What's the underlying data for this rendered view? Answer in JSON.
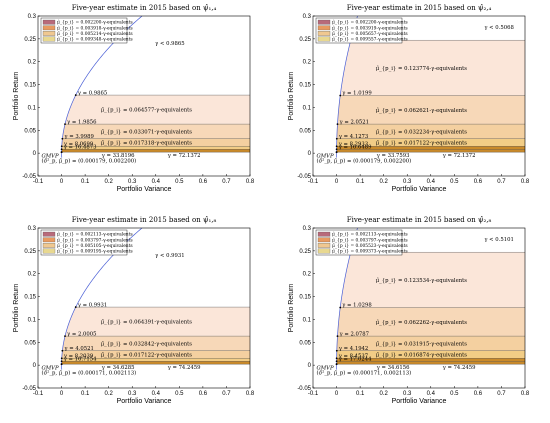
{
  "colors": {
    "frontier": "#4a5fd6",
    "axis": "#000000",
    "band1": "#fbe6d9",
    "band2": "#f7d8b8",
    "band3": "#f4d0a0",
    "band4": "#f2cd86",
    "band5": "#c98a2a",
    "legend1": "#b86a7a",
    "legend2": "#e89a60",
    "legend3": "#f0c890",
    "legend4": "#e8d890"
  },
  "chart_data": [
    {
      "type": "area",
      "title": "Five-year estimate in 2015 based on ψ̂₁,₄",
      "xlabel": "Portfolio Variance",
      "ylabel": "Portfolio Return",
      "xlim": [
        -0.1,
        0.8
      ],
      "ylim": [
        -0.05,
        0.3
      ],
      "x_ticks": [
        "-0.1",
        "0",
        "0.1",
        "0.2",
        "0.3",
        "0.4",
        "0.5",
        "0.6",
        "0.7",
        "0.8"
      ],
      "y_ticks": [
        "-0.05",
        "0",
        "0.05",
        "0.1",
        "0.15",
        "0.2",
        "0.25",
        "0.3"
      ],
      "gmvp": {
        "variance": 0.000179,
        "return": 0.0022,
        "label": "GMVP",
        "coords_label": "(σ̂²_p, μ̂_p) = (0.000179, 0.002200)"
      },
      "legend": [
        "μ̂_{p_i} = 0.002200-γ-equivalents",
        "μ̂_{p_i} = 0.003918-γ-equivalents",
        "μ̂_{p_i} = 0.005214-γ-equivalents",
        "μ̂_{p_i} = 0.009348-γ-equivalents"
      ],
      "bands": [
        {
          "y": 0.127,
          "label": "μ̂_{p_i} = 0.064577-γ-equivalents"
        },
        {
          "y": 0.0635,
          "label": "μ̂_{p_i} = 0.033071-γ-equivalents"
        },
        {
          "y": 0.0315,
          "label": "μ̂_{p_i} = 0.017318-γ-equivalents"
        },
        {
          "y": 0.015,
          "label": ""
        },
        {
          "y": 0.0085,
          "label": ""
        }
      ],
      "gamma_points": [
        {
          "y": 0.127,
          "label": "γ = 0.9865"
        },
        {
          "y": 0.0635,
          "label": "γ = 1.9856"
        },
        {
          "y": 0.0315,
          "label": "γ = 3.9989"
        },
        {
          "y": 0.015,
          "label": "γ = 8.0699"
        },
        {
          "y": 0.0085,
          "label": "γ = 16.4873"
        }
      ],
      "extra": [
        {
          "x": 0.46,
          "y": 0.237,
          "label": "γ < 0.9865"
        },
        {
          "x": 0.24,
          "y": -0.008,
          "label": "γ = 33.8196"
        },
        {
          "x": 0.52,
          "y": -0.008,
          "label": "γ = 72.1372"
        }
      ]
    },
    {
      "type": "area",
      "title": "Five-year estimate in 2015 based on ψ̂₂,₄",
      "xlabel": "Portfolio Variance",
      "ylabel": "Portfolio Return",
      "xlim": [
        -0.1,
        0.8
      ],
      "ylim": [
        -0.05,
        0.3
      ],
      "x_ticks": [
        "-0.1",
        "0",
        "0.1",
        "0.2",
        "0.3",
        "0.4",
        "0.5",
        "0.6",
        "0.7",
        "0.8"
      ],
      "y_ticks": [
        "-0.05",
        "0",
        "0.05",
        "0.1",
        "0.15",
        "0.2",
        "0.25",
        "0.3"
      ],
      "gmvp": {
        "variance": 0.000179,
        "return": 0.0022,
        "label": "GMVP",
        "coords_label": "(σ̂²_p, μ̂_p) = (0.000179, 0.002200)"
      },
      "legend": [
        "μ̂_{p_i} = 0.002200-γ-equivalents",
        "μ̂_{p_i} = 0.003919-γ-equivalents",
        "μ̂_{p_i} = 0.005657-γ-equivalents",
        "μ̂_{p_i} = 0.009557-γ-equivalents"
      ],
      "bands": [
        {
          "y": 0.247,
          "label": "μ̂_{p_i} = 0.123774-γ-equivalents"
        },
        {
          "y": 0.126,
          "label": "μ̂_{p_i} = 0.062621-γ-equivalents"
        },
        {
          "y": 0.0635,
          "label": "μ̂_{p_i} = 0.032234-γ-equivalents"
        },
        {
          "y": 0.0315,
          "label": "μ̂_{p_i} = 0.017122-γ-equivalents"
        },
        {
          "y": 0.015,
          "label": ""
        },
        {
          "y": 0.0085,
          "label": ""
        }
      ],
      "gamma_points": [
        {
          "y": 0.247,
          "label": "γ = 0.5068"
        },
        {
          "y": 0.126,
          "label": "γ = 1.0199"
        },
        {
          "y": 0.0635,
          "label": "γ = 2.0521"
        },
        {
          "y": 0.0315,
          "label": "γ = 4.1273"
        },
        {
          "y": 0.015,
          "label": "γ = 8.2933"
        },
        {
          "y": 0.0085,
          "label": "γ = 16.6489"
        }
      ],
      "extra": [
        {
          "x": 0.69,
          "y": 0.272,
          "label": "γ < 0.5068"
        },
        {
          "x": 0.24,
          "y": -0.008,
          "label": "γ = 33.7593"
        },
        {
          "x": 0.52,
          "y": -0.008,
          "label": "γ = 72.1372"
        }
      ]
    },
    {
      "type": "area",
      "title": "Five-year estimate in 2015 based on ψ̂₁,₈",
      "xlabel": "Portfolio Variance",
      "ylabel": "Portfolio Return",
      "xlim": [
        -0.1,
        0.8
      ],
      "ylim": [
        -0.05,
        0.3
      ],
      "x_ticks": [
        "-0.1",
        "0",
        "0.1",
        "0.2",
        "0.3",
        "0.4",
        "0.5",
        "0.6",
        "0.7",
        "0.8"
      ],
      "y_ticks": [
        "-0.05",
        "0",
        "0.05",
        "0.1",
        "0.15",
        "0.2",
        "0.25",
        "0.3"
      ],
      "gmvp": {
        "variance": 0.000171,
        "return": 0.002113,
        "label": "GMVP",
        "coords_label": "(σ̂²_p, μ̂_p) = (0.000171, 0.002113)"
      },
      "legend": [
        "μ̂_{p_i} = 0.002113-γ-equivalents",
        "μ̂_{p_i} = 0.003797-γ-equivalents",
        "μ̂_{p_i} = 0.005105-γ-equivalents",
        "μ̂_{p_i} = 0.009195-γ-equivalents"
      ],
      "bands": [
        {
          "y": 0.127,
          "label": "μ̂_{p_i} = 0.064391-γ-equivalents"
        },
        {
          "y": 0.0635,
          "label": "μ̂_{p_i} = 0.032842-γ-equivalents"
        },
        {
          "y": 0.0315,
          "label": "μ̂_{p_i} = 0.017122-γ-equivalents"
        },
        {
          "y": 0.015,
          "label": ""
        },
        {
          "y": 0.0085,
          "label": ""
        }
      ],
      "gamma_points": [
        {
          "y": 0.127,
          "label": "γ = 0.9931"
        },
        {
          "y": 0.0635,
          "label": "γ = 2.0005"
        },
        {
          "y": 0.0315,
          "label": "γ = 4.0521"
        },
        {
          "y": 0.015,
          "label": "γ = 8.2039"
        },
        {
          "y": 0.0085,
          "label": "γ = 16.7154"
        }
      ],
      "extra": [
        {
          "x": 0.46,
          "y": 0.237,
          "label": "γ < 0.9931"
        },
        {
          "x": 0.24,
          "y": -0.008,
          "label": "γ = 34.6285"
        },
        {
          "x": 0.52,
          "y": -0.008,
          "label": "γ = 74.2459"
        }
      ]
    },
    {
      "type": "area",
      "title": "Five-year estimate in 2015 based on ψ̂₂,₈",
      "xlabel": "Portfolio Variance",
      "ylabel": "Portfolio Return",
      "xlim": [
        -0.1,
        0.8
      ],
      "ylim": [
        -0.05,
        0.3
      ],
      "x_ticks": [
        "-0.1",
        "0",
        "0.1",
        "0.2",
        "0.3",
        "0.4",
        "0.5",
        "0.6",
        "0.7",
        "0.8"
      ],
      "y_ticks": [
        "-0.05",
        "0",
        "0.05",
        "0.1",
        "0.15",
        "0.2",
        "0.25",
        "0.3"
      ],
      "gmvp": {
        "variance": 0.000171,
        "return": 0.002113,
        "label": "GMVP",
        "coords_label": "(σ̂²_p, μ̂_p) = (0.000171, 0.002113)"
      },
      "legend": [
        "μ̂_{p_i} = 0.002113-γ-equivalents",
        "μ̂_{p_i} = 0.003797-γ-equivalents",
        "μ̂_{p_i} = 0.005523-γ-equivalents",
        "μ̂_{p_i} = 0.009373-γ-equivalents"
      ],
      "bands": [
        {
          "y": 0.247,
          "label": "μ̂_{p_i} = 0.123534-γ-equivalents"
        },
        {
          "y": 0.126,
          "label": "μ̂_{p_i} = 0.062262-γ-equivalents"
        },
        {
          "y": 0.0635,
          "label": "μ̂_{p_i} = 0.031915-γ-equivalents"
        },
        {
          "y": 0.0315,
          "label": "μ̂_{p_i} = 0.016874-γ-equivalents"
        },
        {
          "y": 0.015,
          "label": ""
        },
        {
          "y": 0.0085,
          "label": ""
        }
      ],
      "gamma_points": [
        {
          "y": 0.247,
          "label": "γ = 0.5101"
        },
        {
          "y": 0.126,
          "label": "γ = 1.0298"
        },
        {
          "y": 0.0635,
          "label": "γ = 2.0787"
        },
        {
          "y": 0.0315,
          "label": "γ = 4.1942"
        },
        {
          "y": 0.015,
          "label": "γ = 8.4537"
        },
        {
          "y": 0.0085,
          "label": "γ = 17.0244"
        }
      ],
      "extra": [
        {
          "x": 0.69,
          "y": 0.272,
          "label": "γ < 0.5101"
        },
        {
          "x": 0.24,
          "y": -0.008,
          "label": "γ = 34.6156"
        },
        {
          "x": 0.52,
          "y": -0.008,
          "label": "γ = 74.2459"
        }
      ]
    }
  ]
}
